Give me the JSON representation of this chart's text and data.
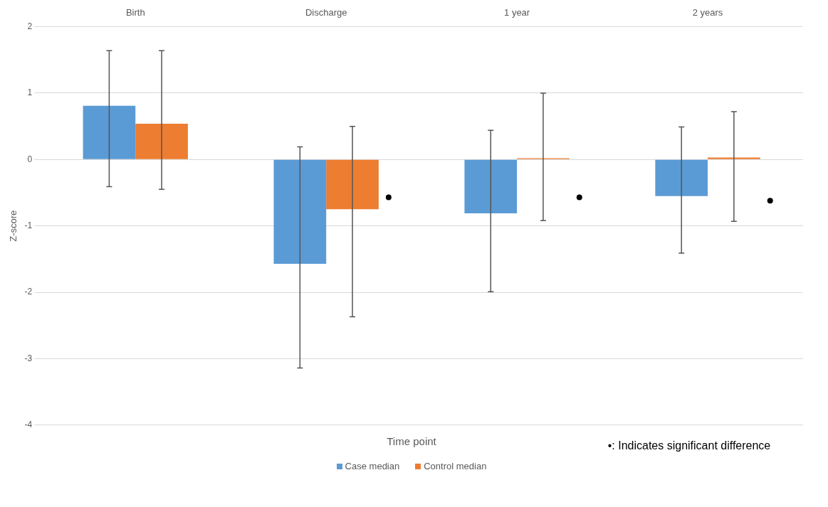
{
  "chart_data": {
    "type": "bar",
    "xlabel": "Time point",
    "ylabel": "Z-score",
    "categories": [
      "Birth",
      "Discharge",
      "1 year",
      "2 years"
    ],
    "series": [
      {
        "name": "Case median",
        "color": "#5b9bd5",
        "values": [
          0.81,
          -1.57,
          -0.81,
          -0.55
        ],
        "errors": [
          [
            -0.41,
            1.64
          ],
          [
            -3.14,
            0.19
          ],
          [
            -1.99,
            0.44
          ],
          [
            -1.41,
            0.49
          ]
        ]
      },
      {
        "name": "Control median",
        "color": "#ed7d31",
        "values": [
          0.54,
          -0.75,
          0.02,
          0.03
        ],
        "errors": [
          [
            -0.45,
            1.64
          ],
          [
            -2.37,
            0.5
          ],
          [
            -0.92,
            1.0
          ],
          [
            -0.93,
            0.72
          ]
        ]
      },
      {
        "type": "scatter",
        "color": "#000000",
        "x": [
          "Discharge",
          "1 year",
          "2 years"
        ],
        "values": [
          -0.57,
          -0.57,
          -0.62
        ]
      }
    ],
    "ylim": [
      -4,
      2
    ],
    "yticks": [
      -4,
      -3,
      -2,
      -1,
      0,
      1,
      2
    ],
    "grid": "y",
    "legend": "bottom",
    "marker": "circle",
    "annotations": [
      "•: Indicates significant difference"
    ]
  }
}
